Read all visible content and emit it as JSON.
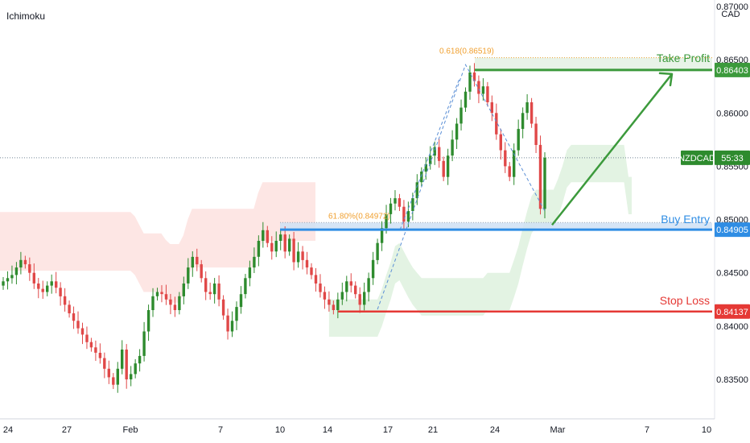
{
  "indicator": "Ichimoku",
  "currency": "CAD",
  "colors": {
    "up": "#26a69a",
    "down": "#ef5350",
    "candle_up": "#2e8b2e",
    "candle_down": "#e04848",
    "take_profit": "#3c9a3c",
    "buy_entry": "#2f8de4",
    "stop_loss": "#e53935",
    "fib": "#f0a030",
    "cloud_red": "#fde3e1",
    "cloud_green": "#e2f2e2"
  },
  "chart_data": {
    "type": "candlestick",
    "symbol_badge": "NZDCAD",
    "countdown": "55:33",
    "y_ticks": [
      "0.87000",
      "0.86500",
      "0.86000",
      "0.85500",
      "0.85000",
      "0.84500",
      "0.84000",
      "0.83500"
    ],
    "y_tick_values": [
      0.87,
      0.865,
      0.86,
      0.855,
      0.85,
      0.845,
      0.84,
      0.835
    ],
    "ylim": [
      0.8313,
      0.8706
    ],
    "x_ticks": [
      "24",
      "27",
      "Feb",
      "7",
      "10",
      "14",
      "17",
      "21",
      "24",
      "Mar",
      "7",
      "10"
    ],
    "current_price": 0.8558,
    "levels": [
      {
        "name": "Take Profit",
        "value": 0.86403,
        "label": "0.86403"
      },
      {
        "name": "Buy Entry",
        "value": 0.84905,
        "label": "0.84905"
      },
      {
        "name": "Stop Loss",
        "value": 0.84137,
        "label": "0.84137"
      }
    ],
    "fib_levels": [
      {
        "label": "0.618(0.86519)",
        "value": 0.86519
      },
      {
        "label": "61.80%(0.84972)",
        "value": 0.84972
      }
    ],
    "candles_close": [
      0.8442,
      0.8445,
      0.8448,
      0.8455,
      0.8462,
      0.8458,
      0.845,
      0.844,
      0.8435,
      0.8432,
      0.8438,
      0.8442,
      0.8436,
      0.8428,
      0.842,
      0.8412,
      0.8405,
      0.8398,
      0.8392,
      0.8385,
      0.838,
      0.8375,
      0.837,
      0.836,
      0.8352,
      0.8345,
      0.836,
      0.8378,
      0.835,
      0.8355,
      0.8365,
      0.8372,
      0.8395,
      0.8415,
      0.8428,
      0.8432,
      0.843,
      0.8425,
      0.842,
      0.8415,
      0.8428,
      0.844,
      0.8455,
      0.8465,
      0.8458,
      0.8445,
      0.8432,
      0.843,
      0.844,
      0.8425,
      0.841,
      0.8395,
      0.8405,
      0.8418,
      0.843,
      0.8445,
      0.8455,
      0.8465,
      0.848,
      0.849,
      0.8478,
      0.847,
      0.848,
      0.8486,
      0.847,
      0.8482,
      0.846,
      0.847,
      0.8462,
      0.8455,
      0.8448,
      0.844,
      0.8432,
      0.8425,
      0.842,
      0.8415,
      0.8425,
      0.8432,
      0.8442,
      0.8438,
      0.843,
      0.842,
      0.8432,
      0.8445,
      0.8462,
      0.8478,
      0.8492,
      0.8505,
      0.8515,
      0.852,
      0.8512,
      0.8498,
      0.8508,
      0.852,
      0.8535,
      0.8545,
      0.8552,
      0.856,
      0.8568,
      0.8555,
      0.854,
      0.856,
      0.8575,
      0.859,
      0.8605,
      0.862,
      0.8638,
      0.863,
      0.8618,
      0.8625,
      0.861,
      0.86,
      0.858,
      0.8565,
      0.855,
      0.854,
      0.8565,
      0.8585,
      0.86,
      0.861,
      0.859,
      0.857,
      0.851,
      0.8558
    ]
  }
}
